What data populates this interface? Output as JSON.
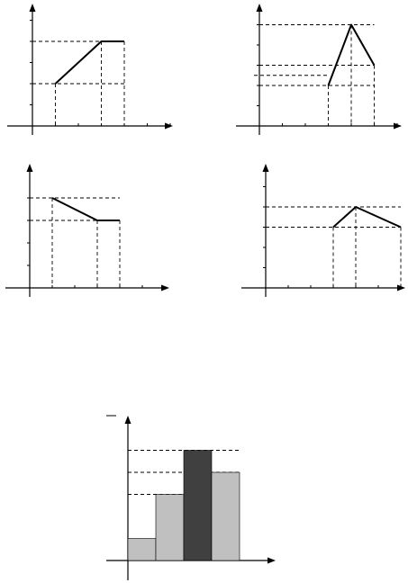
{
  "chart_data": [
    {
      "type": "line",
      "x": [
        1,
        3,
        4
      ],
      "y": [
        2,
        4,
        4
      ],
      "xlim": [
        0,
        6
      ],
      "ylim": [
        0,
        6
      ],
      "title": "",
      "xlabel": "",
      "ylabel": ""
    },
    {
      "type": "line",
      "x": [
        3,
        4,
        5
      ],
      "y": [
        2,
        5,
        3
      ],
      "xlim": [
        0,
        7
      ],
      "ylim": [
        0,
        6
      ],
      "extra_dashed_y": [
        2.5
      ],
      "title": "",
      "xlabel": "",
      "ylabel": ""
    },
    {
      "type": "line",
      "x": [
        1,
        3,
        4
      ],
      "y": [
        4,
        3,
        3
      ],
      "xlim": [
        0,
        6
      ],
      "ylim": [
        0,
        5
      ],
      "title": "",
      "xlabel": "",
      "ylabel": ""
    },
    {
      "type": "line",
      "x": [
        3,
        4,
        6
      ],
      "y": [
        3,
        4,
        3
      ],
      "xlim": [
        0,
        7
      ],
      "ylim": [
        0,
        5
      ],
      "title": "",
      "xlabel": "",
      "ylabel": ""
    },
    {
      "type": "bar",
      "bin_edges": [
        0,
        1,
        2,
        3,
        4
      ],
      "values": [
        1,
        3,
        5,
        4
      ],
      "ylim": [
        0,
        6
      ],
      "colors": [
        "#c0c0c0",
        "#c0c0c0",
        "#404040",
        "#c0c0c0"
      ],
      "dashed_levels": [
        3,
        4,
        5
      ],
      "title": "",
      "xlabel": "",
      "ylabel": ""
    }
  ],
  "style": {
    "line_color": "#000000",
    "light_bar": "#c0c0c0",
    "dark_bar": "#404040"
  }
}
